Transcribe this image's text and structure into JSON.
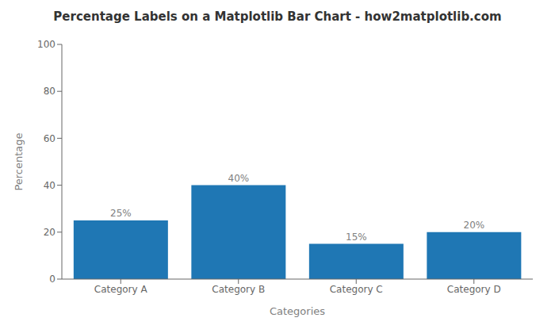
{
  "chart_data": {
    "type": "bar",
    "title": "Percentage Labels on a Matplotlib Bar Chart - how2matplotlib.com",
    "xlabel": "Categories",
    "ylabel": "Percentage",
    "categories": [
      "Category A",
      "Category B",
      "Category C",
      "Category D"
    ],
    "values": [
      25,
      40,
      15,
      20
    ],
    "value_labels": [
      "25%",
      "40%",
      "15%",
      "20%"
    ],
    "data_labels": true,
    "color": "#1f77b4",
    "ylim": [
      0,
      100
    ],
    "yticks": [
      0,
      20,
      40,
      60,
      80,
      100
    ],
    "grid": false
  }
}
